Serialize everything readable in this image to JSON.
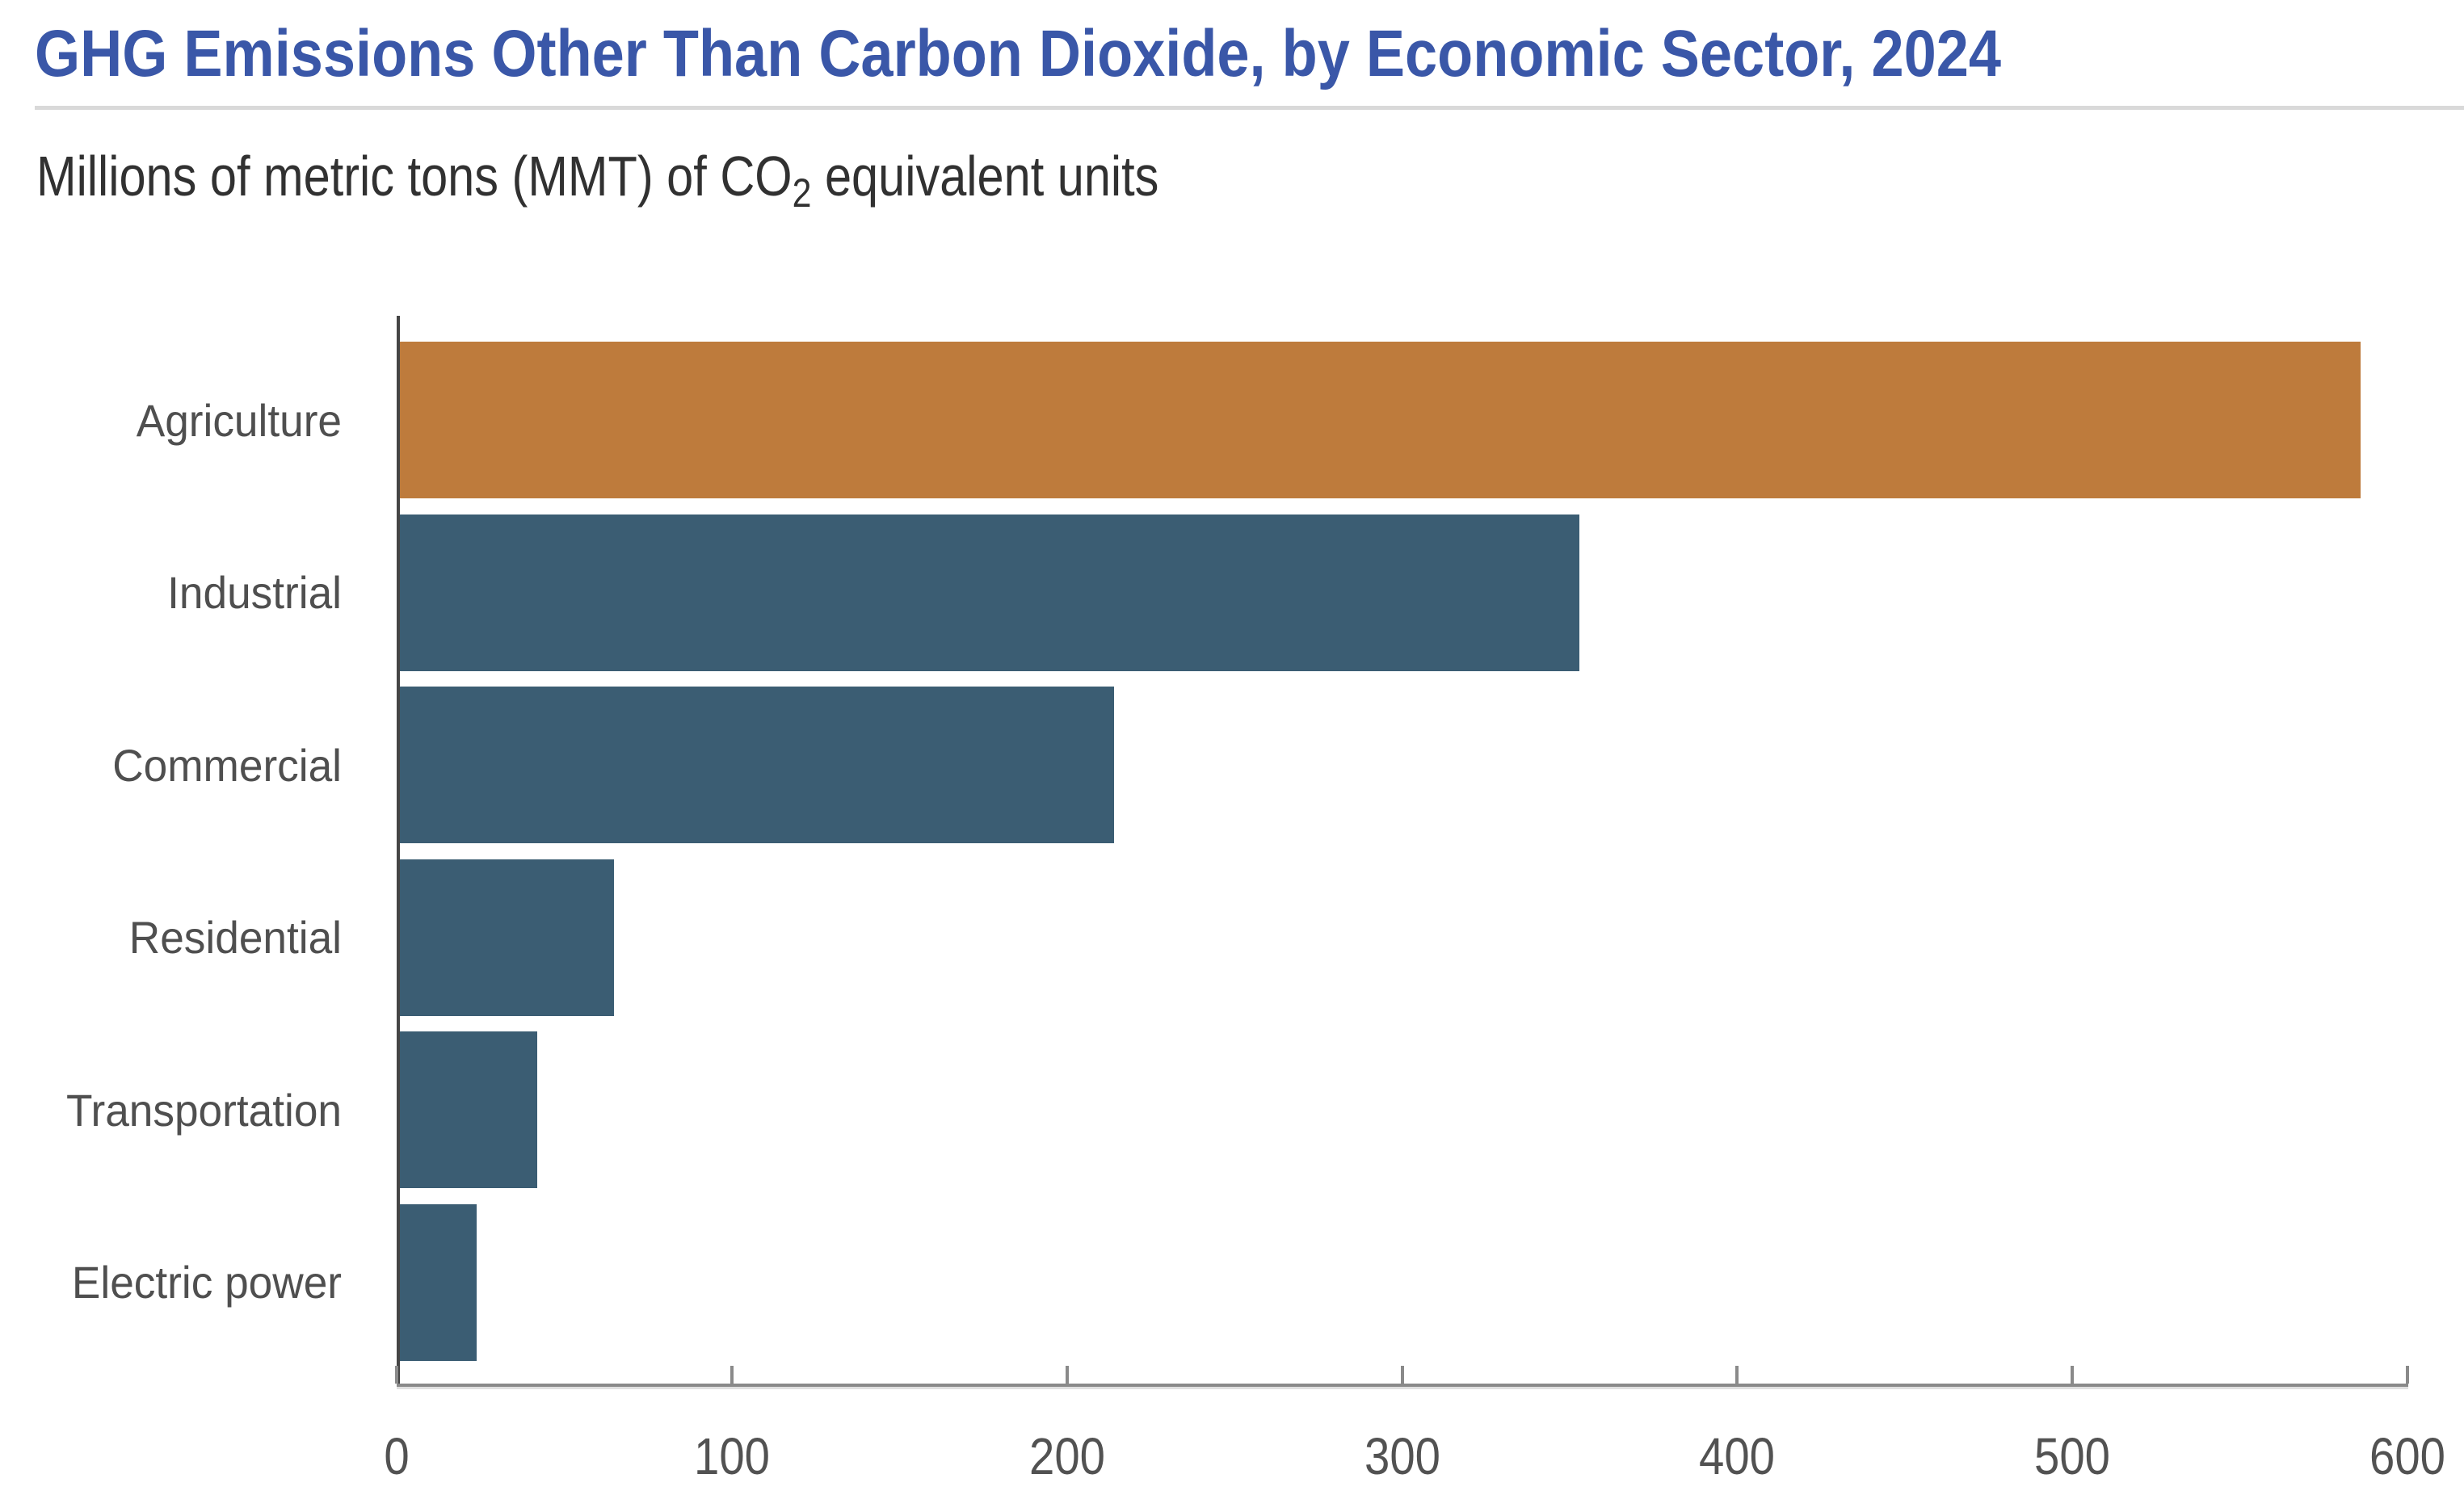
{
  "header": {
    "title": "GHG Emissions Other Than Carbon Dioxide, by Economic Sector, 2024",
    "subtitle_prefix": "Millions of metric tons (MMT) of CO",
    "subtitle_sub": "2",
    "subtitle_suffix": " equivalent units"
  },
  "colors": {
    "title_text": "#3A57A8",
    "subtitle_text": "#313131",
    "label_text": "#4F4F4F",
    "tick_label_text": "#525252",
    "axis_line": "#8A8A8A",
    "y_spine": "#454545",
    "divider": "#D9D9D9",
    "highlight_bar": "#BE7B3C",
    "default_bar": "#3B5D73"
  },
  "chart_data": {
    "type": "bar",
    "orientation": "horizontal",
    "title": "GHG Emissions Other Than Carbon Dioxide, by Economic Sector, 2024",
    "subtitle": "Millions of metric tons (MMT) of CO2 equivalent units",
    "categories": [
      "Agriculture",
      "Industrial",
      "Commercial",
      "Residential",
      "Transportation",
      "Electric power"
    ],
    "values": [
      585,
      352,
      213,
      64,
      41,
      23
    ],
    "bar_colors": [
      "#BE7B3C",
      "#3B5D73",
      "#3B5D73",
      "#3B5D73",
      "#3B5D73",
      "#3B5D73"
    ],
    "highlighted_category": "Agriculture",
    "xlabel": "",
    "ylabel": "",
    "xlim": [
      0,
      600
    ],
    "xticks": [
      0,
      100,
      200,
      300,
      400,
      500,
      600
    ],
    "grid": false,
    "legend": false
  }
}
